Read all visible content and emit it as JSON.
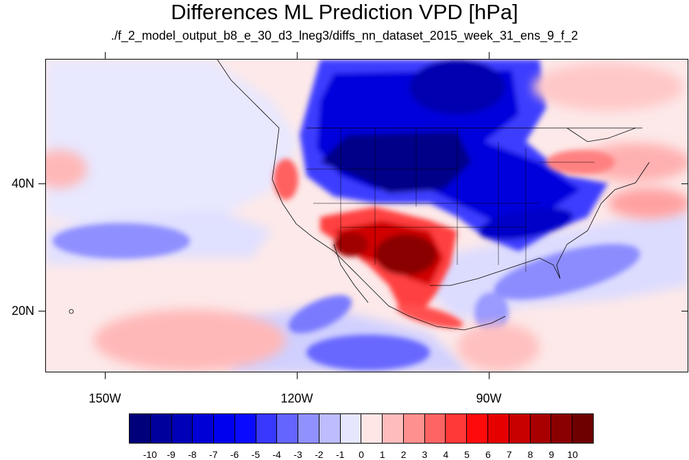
{
  "title": "Differences ML Prediction VPD [hPa]",
  "subtitle": "./f_2_model_output_b8_e_30_d3_lneg3/diffs_nn_dataset_2015_week_31_ens_9_f_2",
  "axes": {
    "lat_labels": [
      "40N",
      "20N"
    ],
    "lon_labels": [
      "150W",
      "120W",
      "90W"
    ]
  },
  "colorbar": {
    "labels": [
      "-10",
      "-9",
      "-8",
      "-7",
      "-6",
      "-5",
      "-4",
      "-3",
      "-2",
      "-1",
      "0",
      "1",
      "2",
      "3",
      "4",
      "5",
      "6",
      "7",
      "8",
      "9",
      "10"
    ],
    "colors": [
      "#00007a",
      "#00009c",
      "#0000b8",
      "#0000d6",
      "#0000ee",
      "#0a0aff",
      "#3838ff",
      "#6464ff",
      "#9090ff",
      "#bcbcff",
      "#e6e6ff",
      "#ffe6e6",
      "#ffbcbc",
      "#ff9090",
      "#ff6464",
      "#ff3838",
      "#ff0a0a",
      "#e60000",
      "#c80000",
      "#a80000",
      "#8a0000",
      "#6e0000"
    ]
  },
  "map": {
    "background_color": "#fde9e9",
    "lat_range": [
      11,
      60
    ],
    "lon_range": [
      -160,
      -60
    ]
  }
}
